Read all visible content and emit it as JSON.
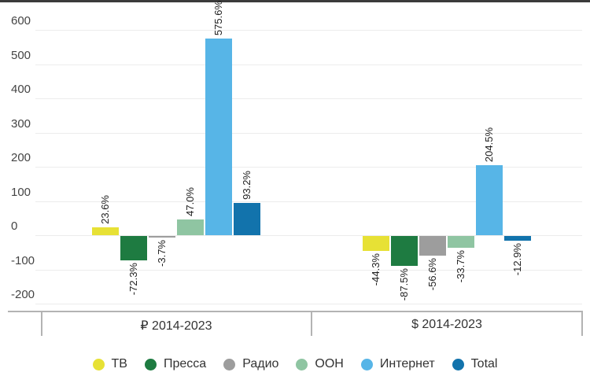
{
  "chart_data": {
    "type": "bar",
    "title": "",
    "xlabel": "",
    "ylabel": "",
    "grid": true,
    "legend_position": "bottom",
    "y_ticks": [
      600,
      500,
      400,
      300,
      200,
      100,
      0,
      -100,
      -200
    ],
    "ylim": [
      -200,
      600
    ],
    "groups": [
      {
        "id": "rub",
        "label": "₽ 2014-2023"
      },
      {
        "id": "usd",
        "label": "$ 2014-2023"
      }
    ],
    "series": [
      {
        "id": "tv",
        "name": "ТВ",
        "color": "#e7e135",
        "values": [
          23.6,
          -44.3
        ],
        "labels": [
          "23.6%",
          "-44.3%"
        ]
      },
      {
        "id": "press",
        "name": "Пресса",
        "color": "#1e7b41",
        "values": [
          -72.3,
          -87.5
        ],
        "labels": [
          "-72.3%",
          "-87.5%"
        ]
      },
      {
        "id": "radio",
        "name": "Радио",
        "color": "#9d9d9d",
        "values": [
          -3.7,
          -56.6
        ],
        "labels": [
          "-3.7%",
          "-56.6%"
        ]
      },
      {
        "id": "ooh",
        "name": "OOH",
        "color": "#8fc5a2",
        "values": [
          47.0,
          -33.7
        ],
        "labels": [
          "47.0%",
          "-33.7%"
        ]
      },
      {
        "id": "internet",
        "name": "Интернет",
        "color": "#57b5e7",
        "values": [
          575.6,
          204.5
        ],
        "labels": [
          "575.6%",
          "204.5%"
        ]
      },
      {
        "id": "total",
        "name": "Total",
        "color": "#1273ac",
        "values": [
          93.2,
          -12.9
        ],
        "labels": [
          "93.2%",
          "-12.9%"
        ]
      }
    ]
  },
  "colors": {
    "gridline": "#ececec",
    "axis_line": "#b3b3b3",
    "tick_label": "#444444",
    "value_label": "#1f1f1f",
    "top_border": "#3b3b3b"
  }
}
